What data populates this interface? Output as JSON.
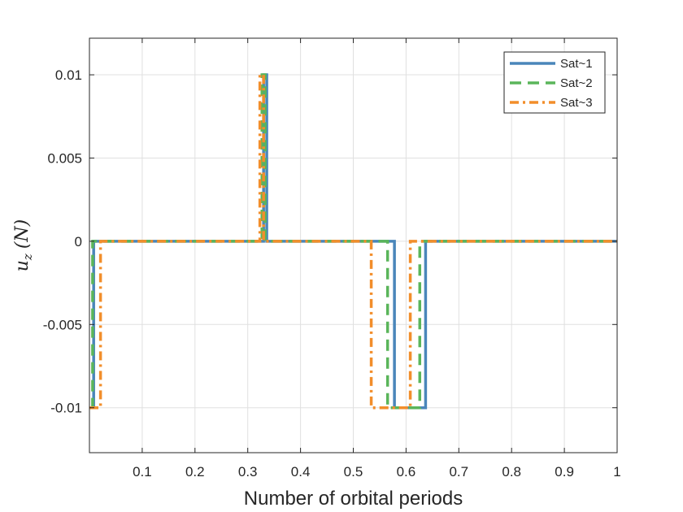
{
  "chart_data": {
    "type": "line",
    "title": "",
    "xlabel": "Number of orbital periods",
    "ylabel_main": "u",
    "ylabel_sub": "z",
    "ylabel_unit": "(N)",
    "xlim": [
      0,
      1
    ],
    "ylim": [
      -0.0127,
      0.0122
    ],
    "xticks": [
      0.1,
      0.2,
      0.3,
      0.4,
      0.5,
      0.6,
      0.7,
      0.8,
      0.9,
      1
    ],
    "xtick_labels": [
      "0.1",
      "0.2",
      "0.3",
      "0.4",
      "0.5",
      "0.6",
      "0.7",
      "0.8",
      "0.9",
      "1"
    ],
    "yticks": [
      0.01,
      0.005,
      0,
      -0.005,
      -0.01
    ],
    "ytick_labels": [
      "0.01",
      "0.005",
      "0",
      "-0.005",
      "-0.01"
    ],
    "grid": true,
    "legend_position": "top-right",
    "series": [
      {
        "name": "Sat~1",
        "color": "#4a86ba",
        "dash": "solid",
        "x": [
          0.003,
          0.003,
          0.008,
          0.008,
          0.33,
          0.33,
          0.336,
          0.336,
          0.578,
          0.578,
          0.637,
          0.637,
          1.0
        ],
        "y": [
          -0.01,
          -0.01,
          -0.01,
          0,
          0,
          0.01,
          0.01,
          0,
          0,
          -0.01,
          -0.01,
          0,
          0
        ]
      },
      {
        "name": "Sat~2",
        "color": "#5ab55a",
        "dash": "dashed",
        "x": [
          0.003,
          0.003,
          0.006,
          0.006,
          0.327,
          0.327,
          0.333,
          0.333,
          0.565,
          0.565,
          0.626,
          0.626,
          1.0
        ],
        "y": [
          -0.01,
          -0.01,
          -0.01,
          0,
          0,
          0.01,
          0.01,
          0,
          0,
          -0.01,
          -0.01,
          0,
          0
        ]
      },
      {
        "name": "Sat~3",
        "color": "#f28e2b",
        "dash": "dashdot",
        "x": [
          0.0,
          0.0,
          0.021,
          0.021,
          0.323,
          0.323,
          0.33,
          0.33,
          0.534,
          0.534,
          0.608,
          0.608,
          1.0
        ],
        "y": [
          -0.01,
          -0.01,
          -0.01,
          0,
          0,
          0.01,
          0.01,
          0,
          0,
          -0.01,
          -0.01,
          0,
          0
        ]
      }
    ]
  }
}
